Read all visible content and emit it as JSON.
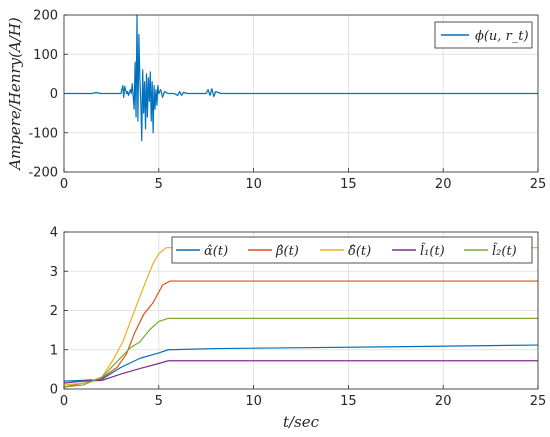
{
  "chart_data": [
    {
      "type": "line",
      "title": "",
      "xlabel": "",
      "ylabel": "Ampere/Henry(A/H)",
      "xlim": [
        0,
        25
      ],
      "ylim": [
        -200,
        200
      ],
      "xticks": [
        "0",
        "5",
        "10",
        "15",
        "20",
        "25"
      ],
      "yticks": [
        "200",
        "100",
        "0",
        "-100",
        "-200"
      ],
      "grid": true,
      "legend_position": "top-right",
      "series": [
        {
          "name": "ϕ(u, r_t)",
          "color": "#0072BD",
          "x": [
            0,
            1.5,
            1.7,
            1.9,
            2.5,
            3.0,
            3.1,
            3.15,
            3.2,
            3.3,
            3.35,
            3.4,
            3.5,
            3.55,
            3.6,
            3.7,
            3.75,
            3.8,
            3.85,
            3.9,
            3.95,
            4.0,
            4.05,
            4.1,
            4.15,
            4.2,
            4.25,
            4.3,
            4.35,
            4.4,
            4.45,
            4.5,
            4.55,
            4.6,
            4.65,
            4.7,
            4.75,
            4.8,
            4.85,
            4.9,
            4.95,
            5.0,
            5.1,
            5.2,
            5.3,
            5.5,
            5.8,
            6.0,
            6.1,
            6.2,
            6.3,
            6.5,
            7.0,
            7.5,
            7.6,
            7.7,
            7.8,
            7.9,
            8.0,
            8.3,
            9,
            10,
            12,
            15,
            18,
            20,
            22,
            25
          ],
          "y": [
            0,
            0,
            3,
            0,
            0,
            0,
            20,
            -10,
            18,
            0,
            5,
            -5,
            10,
            0,
            25,
            -40,
            80,
            -60,
            200,
            -70,
            150,
            40,
            -20,
            -120,
            60,
            -50,
            30,
            -90,
            50,
            -60,
            40,
            -20,
            55,
            -70,
            30,
            -100,
            20,
            -40,
            10,
            -30,
            20,
            0,
            10,
            -10,
            5,
            0,
            0,
            -5,
            5,
            -5,
            3,
            0,
            0,
            0,
            10,
            -5,
            12,
            -8,
            5,
            0,
            0,
            0,
            0,
            0,
            0,
            0,
            0,
            0
          ]
        }
      ]
    },
    {
      "type": "line",
      "title": "",
      "xlabel": "t/sec",
      "ylabel": "",
      "xlim": [
        0,
        25
      ],
      "ylim": [
        0,
        4
      ],
      "xticks": [
        "0",
        "5",
        "10",
        "15",
        "20",
        "25"
      ],
      "yticks": [
        "4",
        "3",
        "2",
        "1",
        "0"
      ],
      "grid": true,
      "legend_position": "top-right",
      "series": [
        {
          "name": "α̂(t)",
          "color": "#0072BD",
          "x": [
            0,
            1,
            2,
            3,
            4,
            5,
            5.5,
            8,
            12,
            18,
            25
          ],
          "y": [
            0.2,
            0.22,
            0.25,
            0.55,
            0.78,
            0.92,
            1.0,
            1.03,
            1.05,
            1.08,
            1.12
          ]
        },
        {
          "name": "β̂(t)",
          "color": "#D95319",
          "x": [
            0,
            1,
            2,
            2.8,
            3.3,
            3.7,
            4.2,
            4.7,
            5.2,
            5.6,
            8,
            25
          ],
          "y": [
            0.05,
            0.15,
            0.28,
            0.55,
            0.9,
            1.4,
            1.9,
            2.2,
            2.65,
            2.75,
            2.75,
            2.75
          ]
        },
        {
          "name": "δ̂(t)",
          "color": "#EDB120",
          "x": [
            0,
            1,
            2,
            2.6,
            3.1,
            3.6,
            4.2,
            4.7,
            5.0,
            5.4,
            6,
            25
          ],
          "y": [
            0.1,
            0.15,
            0.3,
            0.75,
            1.2,
            1.85,
            2.6,
            3.2,
            3.45,
            3.6,
            3.6,
            3.6
          ]
        },
        {
          "name": "l̂₁(t)",
          "color": "#7E2F8E",
          "x": [
            0,
            1,
            2,
            3,
            4,
            5,
            5.5,
            8,
            25
          ],
          "y": [
            0.15,
            0.2,
            0.22,
            0.38,
            0.52,
            0.65,
            0.72,
            0.72,
            0.72
          ]
        },
        {
          "name": "l̂₂(t)",
          "color": "#77AC30",
          "x": [
            0,
            1,
            2,
            2.5,
            3,
            3.5,
            4,
            4.5,
            5,
            5.5,
            8,
            25
          ],
          "y": [
            0.05,
            0.1,
            0.3,
            0.55,
            0.8,
            1.05,
            1.2,
            1.5,
            1.72,
            1.8,
            1.8,
            1.8
          ]
        }
      ]
    }
  ]
}
